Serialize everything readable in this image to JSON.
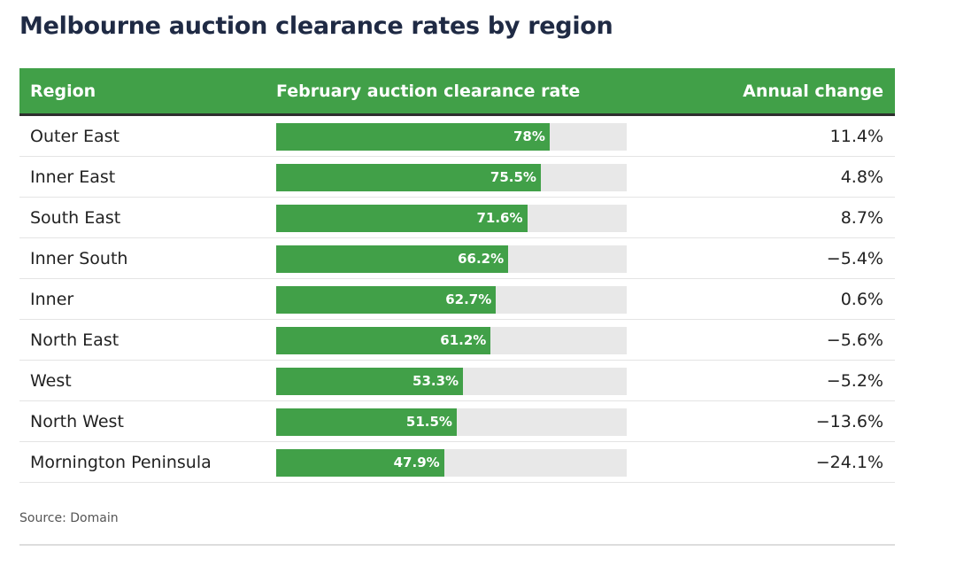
{
  "title": "Melbourne auction clearance rates by region",
  "columns": {
    "region": "Region",
    "rate": "February auction clearance rate",
    "change": "Annual change"
  },
  "source": "Source: Domain",
  "colors": {
    "header": "#41a048",
    "bar": "#41a048",
    "track": "#e8e8e8",
    "title": "#1f2a44"
  },
  "chart_data": {
    "type": "bar",
    "orientation": "horizontal",
    "title": "Melbourne auction clearance rates by region",
    "ylim": [
      0,
      100
    ],
    "categories": [
      "Outer East",
      "Inner East",
      "South East",
      "Inner South",
      "Inner",
      "North East",
      "West",
      "North West",
      "Mornington Peninsula"
    ],
    "series": [
      {
        "name": "February auction clearance rate",
        "values": [
          78,
          75.5,
          71.6,
          66.2,
          62.7,
          61.2,
          53.3,
          51.5,
          47.9
        ]
      }
    ],
    "rows": [
      {
        "region": "Outer East",
        "rate": 78,
        "rate_label": "78%",
        "change": "11.4%"
      },
      {
        "region": "Inner East",
        "rate": 75.5,
        "rate_label": "75.5%",
        "change": "4.8%"
      },
      {
        "region": "South East",
        "rate": 71.6,
        "rate_label": "71.6%",
        "change": "8.7%"
      },
      {
        "region": "Inner South",
        "rate": 66.2,
        "rate_label": "66.2%",
        "change": "−5.4%"
      },
      {
        "region": "Inner",
        "rate": 62.7,
        "rate_label": "62.7%",
        "change": "0.6%"
      },
      {
        "region": "North East",
        "rate": 61.2,
        "rate_label": "61.2%",
        "change": "−5.6%"
      },
      {
        "region": "West",
        "rate": 53.3,
        "rate_label": "53.3%",
        "change": "−5.2%"
      },
      {
        "region": "North West",
        "rate": 51.5,
        "rate_label": "51.5%",
        "change": "−13.6%"
      },
      {
        "region": "Mornington Peninsula",
        "rate": 47.9,
        "rate_label": "47.9%",
        "change": "−24.1%"
      }
    ]
  }
}
